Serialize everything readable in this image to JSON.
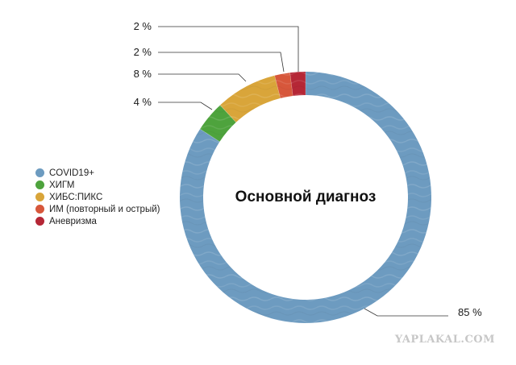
{
  "chart_data": {
    "type": "pie",
    "title": "Основной диагноз",
    "slices": [
      {
        "label": "COVID19+",
        "value": 85,
        "value_label": "85 %",
        "color": "#6d9bc0"
      },
      {
        "label": "ХИГМ",
        "value": 4,
        "value_label": "4 %",
        "color": "#4ea33d"
      },
      {
        "label": "ХИБС:ПИКС",
        "value": 8,
        "value_label": "8 %",
        "color": "#d9a53a"
      },
      {
        "label": "ИМ (повторный и острый)",
        "value": 2,
        "value_label": "2 %",
        "color": "#d7573b"
      },
      {
        "label": "Аневризма",
        "value": 2,
        "value_label": "2 %",
        "color": "#b52736"
      }
    ],
    "legend_position": "left",
    "donut": true
  },
  "watermark": "YAPLAKAL.COM"
}
